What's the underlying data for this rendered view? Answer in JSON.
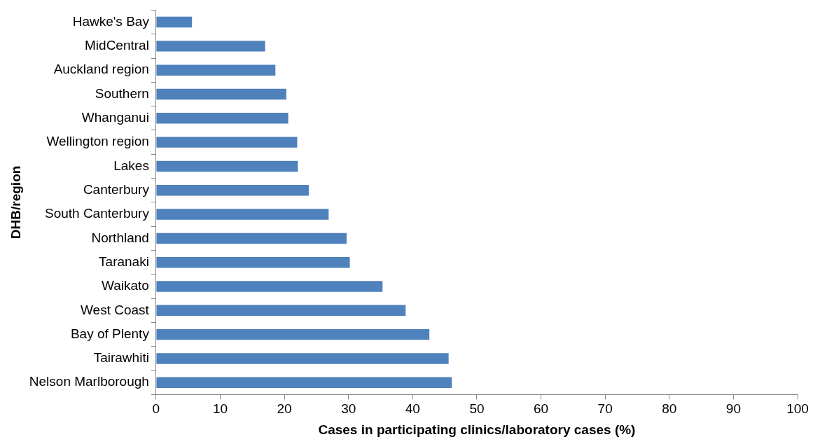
{
  "chart_data": {
    "type": "bar",
    "orientation": "horizontal",
    "xlabel": "Cases in participating clinics/laboratory cases (%)",
    "ylabel": "DHB/region",
    "categories": [
      "Hawke's Bay",
      "MidCentral",
      "Auckland region",
      "Southern",
      "Whanganui",
      "Wellington region",
      "Lakes",
      "Canterbury",
      "South Canterbury",
      "Northland",
      "Taranaki",
      "Waikato",
      "West Coast",
      "Bay of Plenty",
      "Tairawhiti",
      "Nelson Marlborough"
    ],
    "values": [
      5.6,
      17.0,
      18.6,
      20.3,
      20.6,
      22.0,
      22.1,
      23.8,
      26.9,
      29.7,
      30.2,
      35.3,
      38.9,
      42.6,
      45.6,
      46.1
    ],
    "color": "#4f81bd",
    "xlim": [
      0,
      100
    ],
    "xticks": [
      0,
      10,
      20,
      30,
      40,
      50,
      60,
      70,
      80,
      90,
      100
    ],
    "grid": false
  }
}
